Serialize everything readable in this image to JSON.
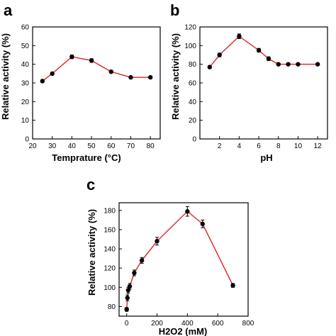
{
  "chart_data": [
    {
      "type": "line",
      "panel_label": "a",
      "xlabel": "Temprature (°C)",
      "ylabel": "Relative activity (%)",
      "xlim": [
        20,
        85
      ],
      "ylim": [
        0,
        60
      ],
      "xticks": [
        20,
        30,
        40,
        50,
        60,
        70,
        80
      ],
      "yticks": [
        0,
        10,
        20,
        30,
        40,
        50,
        60
      ],
      "x": [
        25,
        30,
        40,
        50,
        60,
        70,
        80
      ],
      "y": [
        31,
        35,
        44,
        42,
        36,
        33,
        33
      ],
      "yerr": [
        0.6,
        0.6,
        1.0,
        1.0,
        0.6,
        0.6,
        0.6
      ],
      "line_color": "#e03030",
      "marker_color": "#000000"
    },
    {
      "type": "line",
      "panel_label": "b",
      "xlabel": "pH",
      "ylabel": "Relative activity (%)",
      "xlim": [
        0,
        13
      ],
      "ylim": [
        0,
        120
      ],
      "xticks": [
        2,
        4,
        6,
        8,
        10,
        12
      ],
      "yticks": [
        0,
        20,
        40,
        60,
        80,
        100,
        120
      ],
      "x": [
        1,
        2,
        4,
        6,
        7,
        8,
        9,
        10,
        12
      ],
      "y": [
        77,
        90,
        110,
        95,
        86,
        80,
        80,
        80,
        80
      ],
      "yerr": [
        1.5,
        2,
        2.5,
        2,
        2,
        1.5,
        1,
        1,
        1
      ],
      "line_color": "#e03030",
      "marker_color": "#000000"
    },
    {
      "type": "line",
      "panel_label": "c",
      "xlabel": "H2O2 (mM)",
      "ylabel": "Relative activity (%)",
      "xlim": [
        -50,
        800
      ],
      "ylim": [
        70,
        188
      ],
      "xticks": [
        0,
        200,
        400,
        600,
        800
      ],
      "yticks": [
        80,
        100,
        120,
        140,
        160,
        180
      ],
      "x": [
        0,
        5,
        10,
        20,
        50,
        100,
        200,
        400,
        500,
        700
      ],
      "y": [
        77,
        89,
        97,
        101,
        115,
        128,
        148,
        179,
        166,
        102
      ],
      "yerr": [
        2,
        3,
        3,
        3,
        3,
        3,
        4,
        5,
        4,
        2
      ],
      "line_color": "#e03030",
      "marker_color": "#000000"
    }
  ]
}
